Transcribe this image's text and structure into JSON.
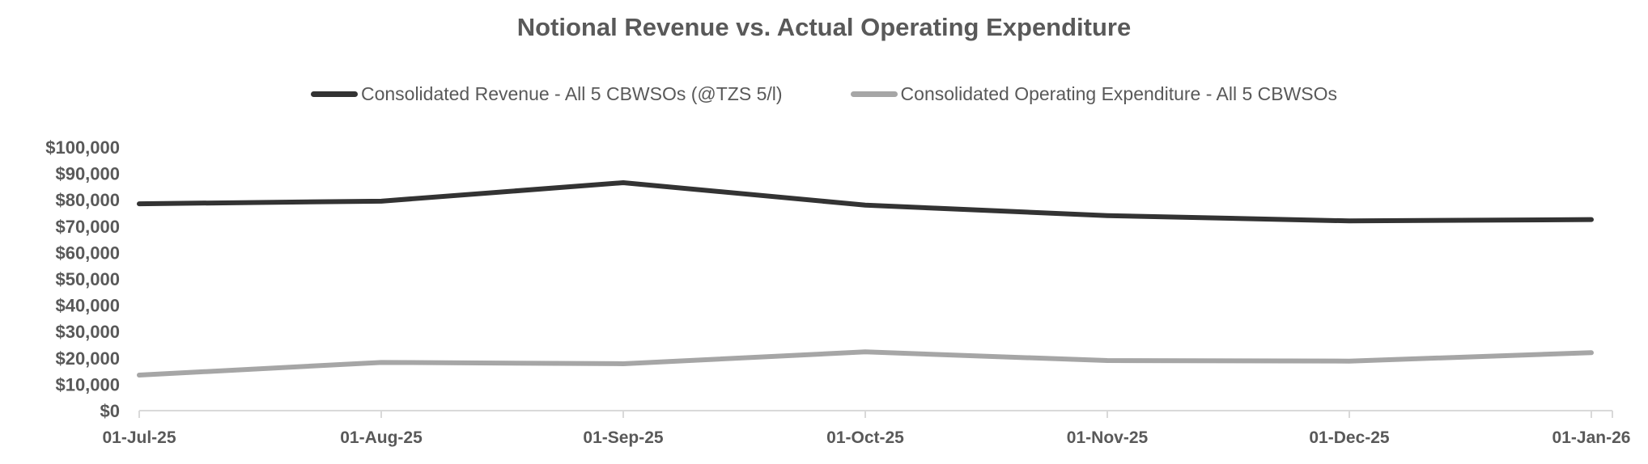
{
  "chart_data": {
    "type": "line",
    "title": "Notional Revenue vs. Actual Operating Expenditure",
    "categories": [
      "01-Jul-25",
      "01-Aug-25",
      "01-Sep-25",
      "01-Oct-25",
      "01-Nov-25",
      "01-Dec-25",
      "01-Jan-26"
    ],
    "series": [
      {
        "name": "Consolidated Revenue - All 5 CBWSOs (@TZS 5/l)",
        "color": "#333333",
        "values": [
          78500,
          79500,
          86500,
          78000,
          74000,
          72000,
          72500
        ]
      },
      {
        "name": "Consolidated Operating Expenditure - All 5 CBWSOs",
        "color": "#a6a6a6",
        "values": [
          13500,
          18300,
          17800,
          22300,
          19000,
          18800,
          22000
        ]
      }
    ],
    "y_axis": {
      "min": 0,
      "max": 100000,
      "step": 10000,
      "tick_labels": [
        "$0",
        "$10,000",
        "$20,000",
        "$30,000",
        "$40,000",
        "$50,000",
        "$60,000",
        "$70,000",
        "$80,000",
        "$90,000",
        "$100,000"
      ]
    },
    "x_axis": {
      "tick_labels": [
        "01-Jul-25",
        "01-Aug-25",
        "01-Sep-25",
        "01-Oct-25",
        "01-Nov-25",
        "01-Dec-25",
        "01-Jan-26"
      ]
    },
    "legend_position": "top",
    "grid": false,
    "colors": {
      "axis_line": "#d9d9d9",
      "label_text": "#595959",
      "title_text": "#595959",
      "background": "#ffffff"
    }
  }
}
